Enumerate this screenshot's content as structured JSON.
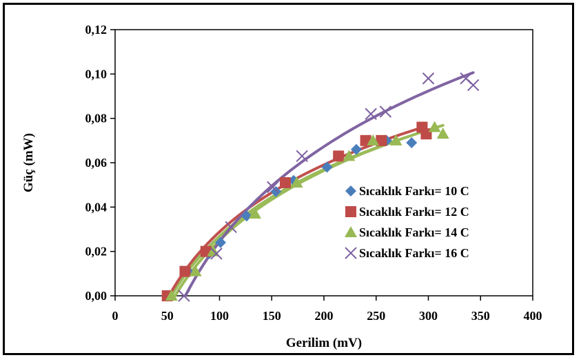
{
  "chart_data": {
    "type": "scatter",
    "title": "",
    "xlabel": "Gerilim (mV)",
    "ylabel": "Güç (mW)",
    "xlim": [
      0,
      400
    ],
    "ylim": [
      0,
      0.12
    ],
    "x_ticks": [
      "0",
      "50",
      "100",
      "150",
      "200",
      "250",
      "300",
      "350",
      "400"
    ],
    "y_ticks": [
      "0,00",
      "0,02",
      "0,04",
      "0,06",
      "0,08",
      "0,10",
      "0,12"
    ],
    "grid": false,
    "legend_position": "inside-right",
    "trendlines": true,
    "series": [
      {
        "name": "Sıcaklık Farkı= 10 C",
        "marker": "diamond",
        "color": "#4a7ebb",
        "points": [
          [
            50,
            0.0
          ],
          [
            70,
            0.011
          ],
          [
            90,
            0.019
          ],
          [
            101,
            0.024
          ],
          [
            126,
            0.036
          ],
          [
            154,
            0.047
          ],
          [
            171,
            0.052
          ],
          [
            203,
            0.058
          ],
          [
            231,
            0.066
          ],
          [
            260,
            0.07
          ],
          [
            284,
            0.069
          ]
        ]
      },
      {
        "name": "Sıcaklık Farkı= 12 C",
        "marker": "square",
        "color": "#be4b48",
        "points": [
          [
            50,
            0.0
          ],
          [
            67,
            0.011
          ],
          [
            87,
            0.02
          ],
          [
            163,
            0.051
          ],
          [
            214,
            0.063
          ],
          [
            240,
            0.07
          ],
          [
            255,
            0.07
          ],
          [
            294,
            0.076
          ],
          [
            298,
            0.073
          ]
        ]
      },
      {
        "name": "Sıcaklık Farkı= 14 C",
        "marker": "triangle",
        "color": "#98b954",
        "points": [
          [
            54,
            0.0
          ],
          [
            77,
            0.011
          ],
          [
            94,
            0.02
          ],
          [
            134,
            0.037
          ],
          [
            174,
            0.051
          ],
          [
            224,
            0.063
          ],
          [
            247,
            0.07
          ],
          [
            269,
            0.07
          ],
          [
            306,
            0.076
          ],
          [
            314,
            0.073
          ]
        ]
      },
      {
        "name": "Sıcaklık Farkı= 16 C",
        "marker": "x",
        "color": "#7d60a0",
        "points": [
          [
            66,
            0.0
          ],
          [
            97,
            0.019
          ],
          [
            111,
            0.031
          ],
          [
            151,
            0.049
          ],
          [
            179,
            0.063
          ],
          [
            245,
            0.082
          ],
          [
            259,
            0.083
          ],
          [
            300,
            0.098
          ],
          [
            336,
            0.098
          ],
          [
            343,
            0.095
          ]
        ]
      }
    ]
  },
  "trend_colors": {
    "group_low": "#c0504d",
    "group_low_alt": "#9bbb59",
    "group_high": "#8064a2"
  }
}
